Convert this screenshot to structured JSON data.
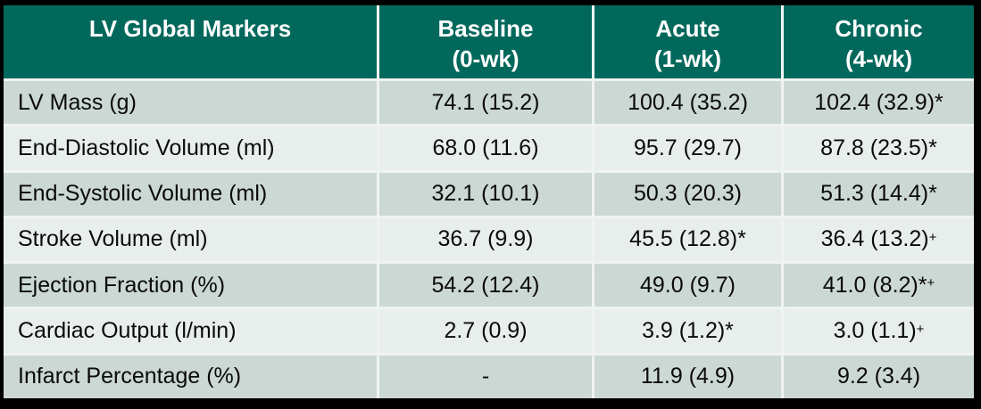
{
  "table": {
    "title": "LV Global Markers",
    "columns": [
      {
        "label": "LV Global Markers",
        "sublabel": ""
      },
      {
        "label": "Baseline",
        "sublabel": "(0-wk)"
      },
      {
        "label": "Acute",
        "sublabel": "(1-wk)"
      },
      {
        "label": "Chronic",
        "sublabel": "(4-wk)"
      }
    ],
    "rows": [
      {
        "label": "LV Mass (g)",
        "cells": [
          {
            "text": "74.1 (15.2)",
            "sup": ""
          },
          {
            "text": "100.4 (35.2)",
            "sup": ""
          },
          {
            "text": "102.4 (32.9)*",
            "sup": ""
          }
        ]
      },
      {
        "label": "End-Diastolic Volume (ml)",
        "cells": [
          {
            "text": "68.0 (11.6)",
            "sup": ""
          },
          {
            "text": "95.7 (29.7)",
            "sup": ""
          },
          {
            "text": "87.8 (23.5)*",
            "sup": ""
          }
        ]
      },
      {
        "label": "End-Systolic Volume (ml)",
        "cells": [
          {
            "text": "32.1 (10.1)",
            "sup": ""
          },
          {
            "text": "50.3 (20.3)",
            "sup": ""
          },
          {
            "text": "51.3 (14.4)*",
            "sup": ""
          }
        ]
      },
      {
        "label": "Stroke Volume (ml)",
        "cells": [
          {
            "text": "36.7 (9.9)",
            "sup": ""
          },
          {
            "text": "45.5 (12.8)*",
            "sup": ""
          },
          {
            "text": "36.4 (13.2)",
            "sup": "+"
          }
        ]
      },
      {
        "label": "Ejection Fraction (%)",
        "cells": [
          {
            "text": "54.2 (12.4)",
            "sup": ""
          },
          {
            "text": "49.0 (9.7)",
            "sup": ""
          },
          {
            "text": "41.0 (8.2)*",
            "sup": "+"
          }
        ]
      },
      {
        "label": "Cardiac Output (l/min)",
        "cells": [
          {
            "text": "2.7 (0.9)",
            "sup": ""
          },
          {
            "text": "3.9 (1.2)*",
            "sup": ""
          },
          {
            "text": "3.0 (1.1)",
            "sup": "+"
          }
        ]
      },
      {
        "label": "Infarct Percentage (%)",
        "cells": [
          {
            "text": "-",
            "sup": ""
          },
          {
            "text": "11.9 (4.9)",
            "sup": ""
          },
          {
            "text": "9.2 (3.4)",
            "sup": ""
          }
        ]
      }
    ]
  },
  "colors": {
    "header_bg": "#02685c",
    "header_text": "#ffffff",
    "row_dark": "#ccd8d4",
    "row_light": "#e8eeec",
    "separator": "#eff3f2",
    "frame": "#000000",
    "data_text": "#0a0a0a"
  }
}
